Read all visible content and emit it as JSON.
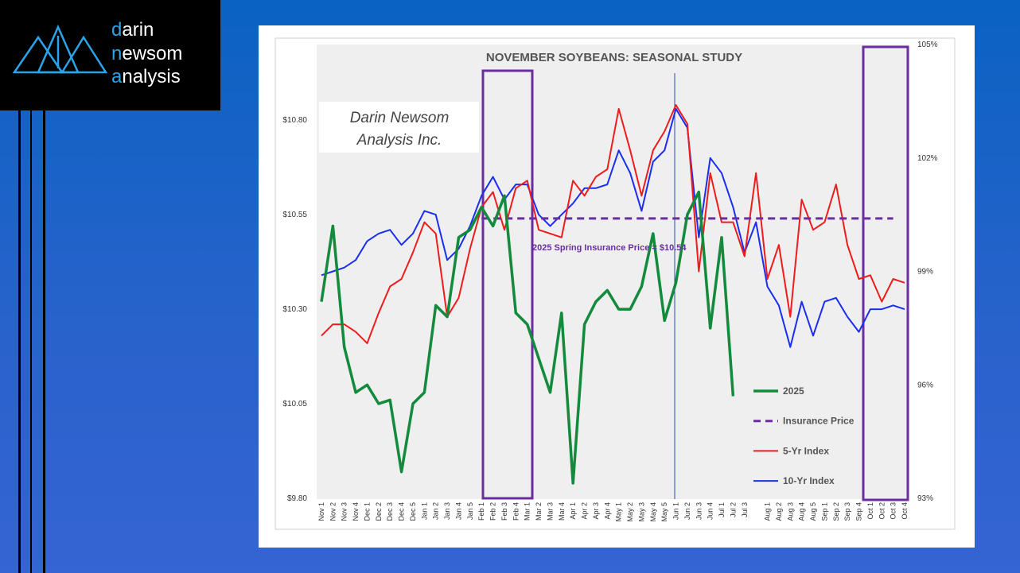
{
  "logo": {
    "lines": [
      "darin",
      "newsom",
      "analysis"
    ]
  },
  "chart_data": {
    "type": "line",
    "title": "NOVEMBER SOYBEANS: SEASONAL STUDY",
    "watermark": [
      "Darin Newsom",
      "Analysis Inc."
    ],
    "annotation": "2025 Spring Insurance Price = $10.54",
    "categories": [
      "Nov 1",
      "Nov 2",
      "Nov 3",
      "Nov 4",
      "Dec 1",
      "Dec 2",
      "Dec 3",
      "Dec 4",
      "Dec 5",
      "Jan 1",
      "Jan 2",
      "Jan 3",
      "Jan 4",
      "Jan 5",
      "Feb 1",
      "Feb 2",
      "Feb 3",
      "Feb 4",
      "Mar 1",
      "Mar 2",
      "Mar 3",
      "Mar 4",
      "Apr 1",
      "Apr 2",
      "Apr 3",
      "Apr 4",
      "May 1",
      "May 2",
      "May 3",
      "May 4",
      "May 5",
      "Jun 1",
      "Jun 2",
      "Jun 3",
      "Jun 4",
      "Jul 1",
      "Jul 2",
      "Jul 3",
      null,
      "Aug 1",
      "Aug 2",
      "Aug 3",
      "Aug 4",
      "Aug 5",
      "Sep 1",
      "Sep 2",
      "Sep 3",
      "Sep 4",
      "Oct 1",
      "Oct 2",
      "Oct 3",
      "Oct 4"
    ],
    "series": [
      {
        "name": "2025",
        "color": "#138a3c",
        "width": 3.5,
        "values": [
          10.32,
          10.52,
          10.2,
          10.08,
          10.1,
          10.05,
          10.06,
          9.87,
          10.05,
          10.08,
          10.31,
          10.28,
          10.49,
          10.51,
          10.57,
          10.52,
          10.6,
          10.29,
          10.26,
          10.17,
          10.08,
          10.29,
          9.84,
          10.26,
          10.32,
          10.35,
          10.3,
          10.3,
          10.36,
          10.5,
          10.27,
          10.37,
          10.55,
          10.61,
          10.25,
          10.49,
          10.07,
          null,
          null,
          null,
          null,
          null,
          null,
          null,
          null,
          null,
          null,
          null,
          null,
          null,
          null,
          null
        ]
      },
      {
        "name": "Insurance Price",
        "color": "#6a2ea0",
        "width": 3,
        "line_style": "dashed",
        "values": [
          null,
          null,
          null,
          null,
          null,
          null,
          null,
          null,
          null,
          null,
          null,
          null,
          null,
          null,
          10.54,
          10.54,
          10.54,
          10.54,
          10.54,
          10.54,
          10.54,
          10.54,
          10.54,
          10.54,
          10.54,
          10.54,
          10.54,
          10.54,
          10.54,
          10.54,
          10.54,
          10.54,
          10.54,
          10.54,
          10.54,
          10.54,
          10.54,
          10.54,
          10.54,
          10.54,
          10.54,
          10.54,
          10.54,
          10.54,
          10.54,
          10.54,
          10.54,
          10.54,
          10.54,
          10.54,
          10.54,
          null
        ]
      },
      {
        "name": "5-Yr Index",
        "color": "#ee1c1c",
        "width": 2,
        "axis": "y2",
        "values": [
          97.3,
          97.6,
          97.6,
          97.4,
          97.1,
          97.9,
          98.6,
          98.8,
          99.5,
          100.3,
          100,
          97.8,
          98.3,
          99.6,
          100.7,
          101.1,
          100.1,
          101.2,
          101.4,
          100.1,
          100,
          99.9,
          101.4,
          101,
          101.5,
          101.7,
          103.3,
          102.2,
          101,
          102.2,
          102.7,
          103.4,
          102.9,
          99,
          101.6,
          100.3,
          100.3,
          99.4,
          101.6,
          98.8,
          99.7,
          97.8,
          100.9,
          100.1,
          100.3,
          101.3,
          99.7,
          98.8,
          98.9,
          98.2,
          98.8,
          98.7
        ]
      },
      {
        "name": "10-Yr Index",
        "color": "#1a2ef0",
        "width": 2,
        "axis": "y2",
        "values": [
          98.9,
          99,
          99.1,
          99.3,
          99.8,
          100,
          100.1,
          99.7,
          100,
          100.6,
          100.5,
          99.3,
          99.6,
          100.2,
          101,
          101.5,
          100.9,
          101.3,
          101.3,
          100.5,
          100.2,
          100.5,
          100.8,
          101.2,
          101.2,
          101.3,
          102.2,
          101.6,
          100.6,
          101.9,
          102.2,
          103.3,
          102.8,
          99.9,
          102,
          101.6,
          100.7,
          99.5,
          100.3,
          98.6,
          98.1,
          97,
          98.2,
          97.3,
          98.2,
          98.3,
          97.8,
          97.4,
          98,
          98,
          98.1,
          98
        ]
      }
    ],
    "ylim": [
      9.8,
      11.0
    ],
    "yticks": [
      {
        "value": 9.8,
        "label": "$9.80"
      },
      {
        "value": 10.05,
        "label": "$10.05"
      },
      {
        "value": 10.3,
        "label": "$10.30"
      },
      {
        "value": 10.55,
        "label": "$10.55"
      },
      {
        "value": 10.8,
        "label": "$10.80"
      }
    ],
    "y2lim": [
      93,
      105
    ],
    "y2ticks": [
      {
        "value": 93,
        "label": "93%"
      },
      {
        "value": 96,
        "label": "96%"
      },
      {
        "value": 99,
        "label": "99%"
      },
      {
        "value": 102,
        "label": "102%"
      },
      {
        "value": 105,
        "label": "105%"
      }
    ]
  }
}
